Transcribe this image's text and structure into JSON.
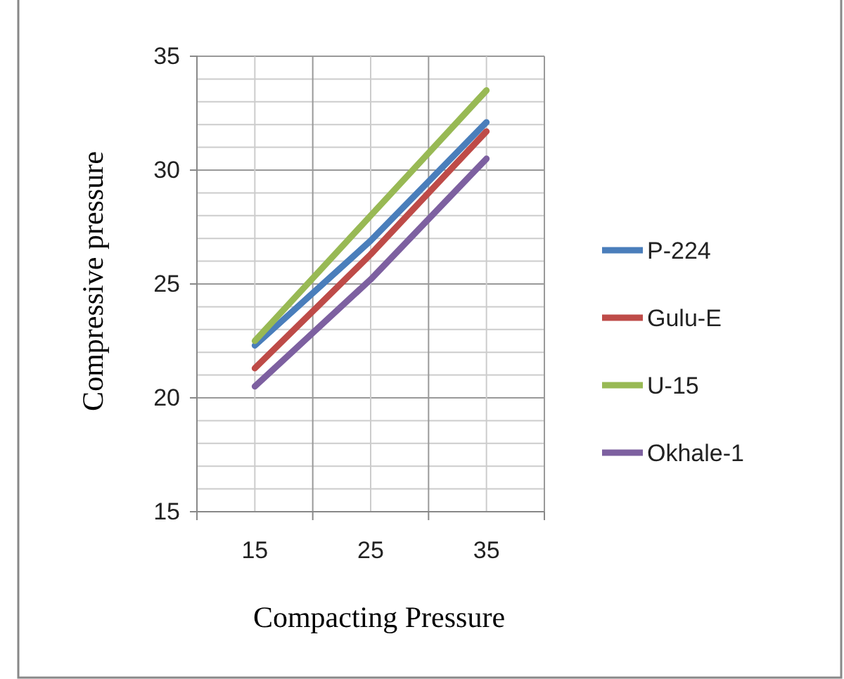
{
  "chart_data": {
    "type": "line",
    "xlabel": "Compacting Pressure",
    "ylabel": "Compressive pressure",
    "categories": [
      "15",
      "25",
      "35"
    ],
    "series": [
      {
        "name": "P-224",
        "color": "#4a7ebb",
        "values": [
          22.3,
          26.9,
          32.1
        ]
      },
      {
        "name": "Gulu-E",
        "color": "#be4b48",
        "values": [
          21.3,
          26.3,
          31.7
        ]
      },
      {
        "name": "U-15",
        "color": "#98b954",
        "values": [
          22.5,
          28,
          33.5
        ]
      },
      {
        "name": "Okhale-1",
        "color": "#7d60a0",
        "values": [
          20.5,
          25.2,
          30.5
        ]
      }
    ],
    "ylim": [
      15,
      35
    ],
    "yticks": [
      15,
      20,
      25,
      30,
      35
    ],
    "grid": true,
    "legend": "right",
    "marker": "none",
    "line_style": "solid"
  }
}
